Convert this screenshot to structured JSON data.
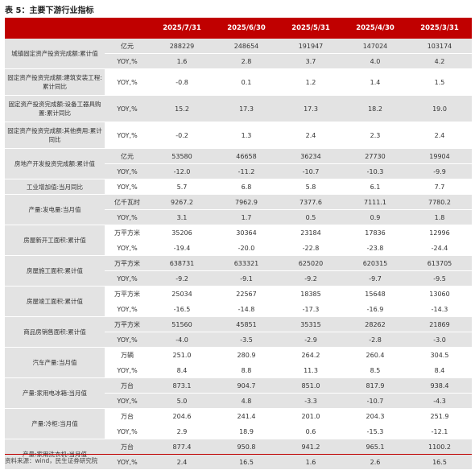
{
  "title": "表 5：主要下游行业指标",
  "table": {
    "header": [
      "2025/7/31",
      "2025/6/30",
      "2025/5/31",
      "2025/4/30",
      "2025/3/31"
    ],
    "groups": [
      {
        "name": "城镇固定资产投资完成额:累计值",
        "rows": [
          [
            "亿元",
            "288229",
            "248654",
            "191947",
            "147024",
            "103174"
          ],
          [
            "YOY,%",
            "1.6",
            "2.8",
            "3.7",
            "4.0",
            "4.2"
          ]
        ]
      },
      {
        "name": "固定资产投资完成额:建筑安装工程:累计同比",
        "rows": [
          [
            "YOY,%",
            "-0.8",
            "0.1",
            "1.2",
            "1.4",
            "1.5"
          ]
        ]
      },
      {
        "name": "固定资产投资完成额:设备工器具购置:累计同比",
        "rows": [
          [
            "YOY,%",
            "15.2",
            "17.3",
            "17.3",
            "18.2",
            "19.0"
          ]
        ]
      },
      {
        "name": "固定资产投资完成额:其他费用:累计同比",
        "rows": [
          [
            "YOY,%",
            "-0.2",
            "1.3",
            "2.4",
            "2.3",
            "2.4"
          ]
        ]
      },
      {
        "name": "房地产开发投资完成额:累计值",
        "rows": [
          [
            "亿元",
            "53580",
            "46658",
            "36234",
            "27730",
            "19904"
          ],
          [
            "YOY,%",
            "-12.0",
            "-11.2",
            "-10.7",
            "-10.3",
            "-9.9"
          ]
        ]
      },
      {
        "name": "工业增加值:当月同比",
        "rows": [
          [
            "YOY,%",
            "5.7",
            "6.8",
            "5.8",
            "6.1",
            "7.7"
          ]
        ]
      },
      {
        "name": "产量:发电量:当月值",
        "rows": [
          [
            "亿千瓦时",
            "9267.2",
            "7962.9",
            "7377.6",
            "7111.1",
            "7780.2"
          ],
          [
            "YOY,%",
            "3.1",
            "1.7",
            "0.5",
            "0.9",
            "1.8"
          ]
        ]
      },
      {
        "name": "房屋新开工面积:累计值",
        "rows": [
          [
            "万平方米",
            "35206",
            "30364",
            "23184",
            "17836",
            "12996"
          ],
          [
            "YOY,%",
            "-19.4",
            "-20.0",
            "-22.8",
            "-23.8",
            "-24.4"
          ]
        ]
      },
      {
        "name": "房屋施工面积:累计值",
        "rows": [
          [
            "万平方米",
            "638731",
            "633321",
            "625020",
            "620315",
            "613705"
          ],
          [
            "YOY,%",
            "-9.2",
            "-9.1",
            "-9.2",
            "-9.7",
            "-9.5"
          ]
        ]
      },
      {
        "name": "房屋竣工面积:累计值",
        "rows": [
          [
            "万平方米",
            "25034",
            "22567",
            "18385",
            "15648",
            "13060"
          ],
          [
            "YOY,%",
            "-16.5",
            "-14.8",
            "-17.3",
            "-16.9",
            "-14.3"
          ]
        ]
      },
      {
        "name": "商品房销售面积:累计值",
        "rows": [
          [
            "万平方米",
            "51560",
            "45851",
            "35315",
            "28262",
            "21869"
          ],
          [
            "YOY,%",
            "-4.0",
            "-3.5",
            "-2.9",
            "-2.8",
            "-3.0"
          ]
        ]
      },
      {
        "name": "汽车产量:当月值",
        "rows": [
          [
            "万辆",
            "251.0",
            "280.9",
            "264.2",
            "260.4",
            "304.5"
          ],
          [
            "YOY,%",
            "8.4",
            "8.8",
            "11.3",
            "8.5",
            "8.4"
          ]
        ]
      },
      {
        "name": "产量:家用电冰箱:当月值",
        "rows": [
          [
            "万台",
            "873.1",
            "904.7",
            "851.0",
            "817.9",
            "938.4"
          ],
          [
            "YOY,%",
            "5.0",
            "4.8",
            "-3.3",
            "-10.7",
            "-4.3"
          ]
        ]
      },
      {
        "name": "产量:冷柜:当月值",
        "rows": [
          [
            "万台",
            "204.6",
            "241.4",
            "201.0",
            "204.3",
            "251.9"
          ],
          [
            "YOY,%",
            "2.9",
            "18.9",
            "0.6",
            "-15.3",
            "-12.1"
          ]
        ]
      },
      {
        "name": "产量:家用洗衣机:当月值",
        "rows": [
          [
            "万台",
            "877.4",
            "950.8",
            "941.2",
            "965.1",
            "1100.2"
          ],
          [
            "YOY,%",
            "2.4",
            "16.5",
            "1.6",
            "2.6",
            "16.5"
          ]
        ]
      }
    ]
  },
  "source": "资料来源：wind，民生证券研究院"
}
